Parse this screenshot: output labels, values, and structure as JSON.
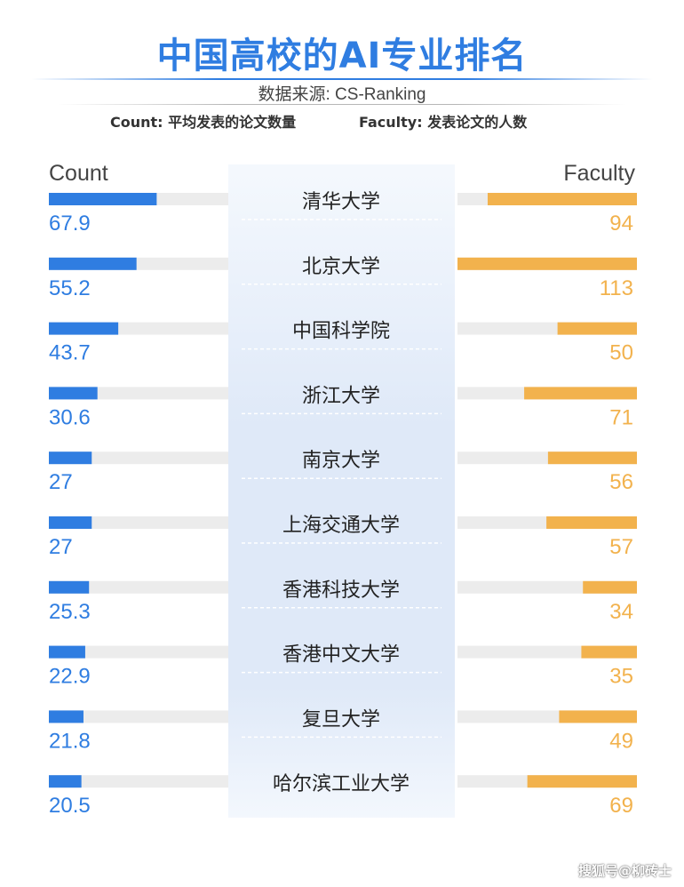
{
  "header": {
    "title": "中国高校的AI专业排名",
    "source": "数据来源: CS-Ranking",
    "count_note": "Count: 平均发表的论文数量",
    "faculty_note": "Faculty: 发表论文的人数"
  },
  "watermark": "搜狐号@柳砖士",
  "colors": {
    "count_bar": "#2f7de1",
    "faculty_bar": "#f2b24d",
    "track": "#ececec",
    "title": "#2f7de1"
  },
  "chart_data": {
    "type": "bar",
    "layout": "diverging-two-sided",
    "title": "中国高校的AI专业排名",
    "categories": [
      "清华大学",
      "北京大学",
      "中国科学院",
      "浙江大学",
      "南京大学",
      "上海交通大学",
      "香港科技大学",
      "香港中文大学",
      "复旦大学",
      "哈尔滨工业大学"
    ],
    "series": [
      {
        "name": "Count",
        "values": [
          67.9,
          55.2,
          43.7,
          30.6,
          27,
          27,
          25.3,
          22.9,
          21.8,
          20.5
        ],
        "max": 113
      },
      {
        "name": "Faculty",
        "values": [
          94,
          113,
          50,
          71,
          56,
          57,
          34,
          35,
          49,
          69
        ],
        "max": 113
      }
    ]
  }
}
